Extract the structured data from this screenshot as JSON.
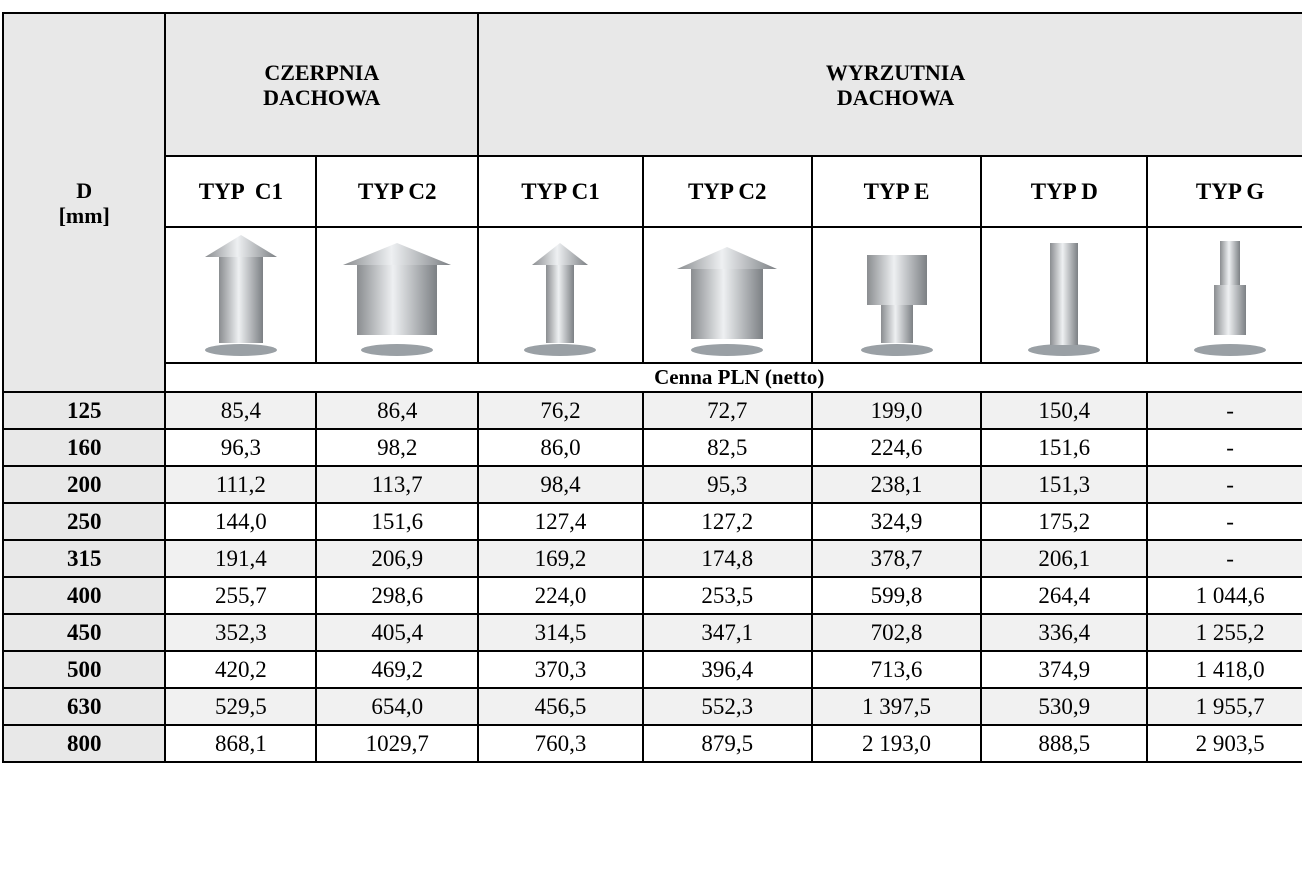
{
  "header": {
    "d_label": "D",
    "d_unit": "[mm]",
    "groups": [
      [
        "CZERPNIA",
        "DACHOWA"
      ],
      [
        "WYRZUTNIA",
        "DACHOWA"
      ]
    ],
    "types": [
      "TYP  C1",
      "TYP C2",
      "TYP C1",
      "TYP C2",
      "TYP E",
      "TYP D",
      "TYP G"
    ],
    "price_label": "Cenna PLN (netto)"
  },
  "table": {
    "rows": [
      [
        "125",
        "85,4",
        "86,4",
        "76,2",
        "72,7",
        "199,0",
        "150,4",
        "-"
      ],
      [
        "160",
        "96,3",
        "98,2",
        "86,0",
        "82,5",
        "224,6",
        "151,6",
        "-"
      ],
      [
        "200",
        "111,2",
        "113,7",
        "98,4",
        "95,3",
        "238,1",
        "151,3",
        "-"
      ],
      [
        "250",
        "144,0",
        "151,6",
        "127,4",
        "127,2",
        "324,9",
        "175,2",
        "-"
      ],
      [
        "315",
        "191,4",
        "206,9",
        "169,2",
        "174,8",
        "378,7",
        "206,1",
        "-"
      ],
      [
        "400",
        "255,7",
        "298,6",
        "224,0",
        "253,5",
        "599,8",
        "264,4",
        "1 044,6"
      ],
      [
        "450",
        "352,3",
        "405,4",
        "314,5",
        "347,1",
        "702,8",
        "336,4",
        "1 255,2"
      ],
      [
        "500",
        "420,2",
        "469,2",
        "370,3",
        "396,4",
        "713,6",
        "374,9",
        "1 418,0"
      ],
      [
        "630",
        "529,5",
        "654,0",
        "456,5",
        "552,3",
        "1 397,5",
        "530,9",
        "1 955,7"
      ],
      [
        "800",
        "868,1",
        "1029,7",
        "760,3",
        "879,5",
        "2 193,0",
        "888,5",
        "2 903,5"
      ]
    ]
  }
}
